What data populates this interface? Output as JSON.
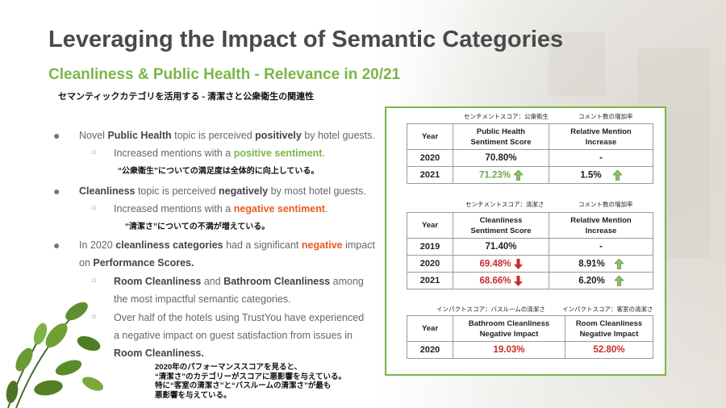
{
  "slide": {
    "title": "Leveraging the Impact of Semantic Categories",
    "subtitle": "Cleanliness & Public Health - Relevance in 20/21",
    "subtitle_jp": "セマンティックカテゴリを活用する - 清潔さと公衆衛生の関連性"
  },
  "bullets": {
    "b1": {
      "pre": "Novel ",
      "bold1": "Public Health",
      "mid": " topic is perceived ",
      "bold2": "positively",
      "post": " by hotel guests."
    },
    "b1_sub": {
      "pre": "Increased mentions with a ",
      "hl": "positive sentiment",
      "post": "."
    },
    "b1_jp": "“公衆衛生”についての満足度は全体的に向上している。",
    "b2": {
      "bold1": "Cleanliness",
      "mid": " topic is perceived ",
      "bold2": "negatively",
      "post": " by most hotel guests."
    },
    "b2_sub": {
      "pre": "Increased mentions with a ",
      "hl": "negative sentiment",
      "post": "."
    },
    "b2_jp": "“清潔さ”についての不満が増えている。",
    "b3_line1": {
      "pre": "In 2020 ",
      "bold1": "cleanliness categories",
      "mid": " had a significant ",
      "hl": "negative",
      "post": " impact"
    },
    "b3_line2": {
      "pre": "on ",
      "bold1": "Performance Scores."
    },
    "b3_sub1_line1": {
      "bold1": "Room Cleanliness",
      "mid": " and ",
      "bold2": "Bathroom Cleanliness",
      "post": " among"
    },
    "b3_sub1_line2": "the most impactful semantic categories.",
    "b3_sub2_line1": "Over half of the hotels using TrustYou have  experienced",
    "b3_sub2_line2": "a negative impact on guest satisfaction from issues in",
    "b3_sub2_line3": "Room Cleanliness."
  },
  "bottom_jp": {
    "l1": "2020年のパフォーマンススコアを見ると、",
    "l2": "“清潔さ”のカテゴリーがスコアに悪影響を与えている。",
    "l3": "特に“客室の清潔さ”と“バスルームの清潔さ”が最も",
    "l4": "悪影響を与えている。"
  },
  "table1": {
    "label_jp_left": "センチメントスコア：公衆衛生",
    "label_jp_right": "コメント数の増加率",
    "headers": [
      "Year",
      "Public Health\nSentiment Score",
      "Relative Mention\nIncrease"
    ],
    "rows": [
      {
        "year": "2020",
        "score": "70.80%",
        "increase": "-"
      },
      {
        "year": "2021",
        "score": "71.23%",
        "increase": "1.5%"
      }
    ]
  },
  "table2": {
    "label_jp_left": "センチメントスコア：清潔さ",
    "label_jp_right": "コメント数の増加率",
    "headers": [
      "Year",
      "Cleanliness\nSentiment Score",
      "Relative Mention\nIncrease"
    ],
    "rows": [
      {
        "year": "2019",
        "score": "71.40%",
        "increase": "-"
      },
      {
        "year": "2020",
        "score": "69.48%",
        "increase": "8.91%"
      },
      {
        "year": "2021",
        "score": "68.66%",
        "increase": "6.20%"
      }
    ]
  },
  "table3": {
    "label_jp_left": "インパクトスコア：バスルームの清潔さ",
    "label_jp_right": "インパクトスコア：客室の清潔さ",
    "headers": [
      "Year",
      "Bathroom Cleanliness\nNegative Impact",
      "Room Cleanliness\nNegative Impact"
    ],
    "rows": [
      {
        "year": "2020",
        "bathroom": "19.03%",
        "room": "52.80%"
      }
    ]
  },
  "colors": {
    "accent_green": "#7ab648",
    "negative_orange": "#ea5a1f",
    "arrow_green": "#8dc26f",
    "arrow_red": "#cc2b2b"
  },
  "icons": [
    "up-arrow-icon",
    "down-arrow-icon",
    "bullet-dot-icon",
    "sub-bullet-circle-icon"
  ]
}
